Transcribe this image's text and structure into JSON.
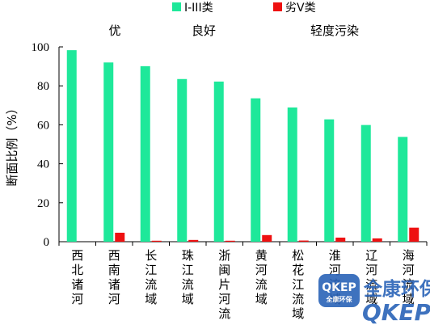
{
  "chart_data": {
    "type": "bar",
    "categories": [
      "西北诸河",
      "西南诸河",
      "长江流域",
      "珠江流域",
      "浙闽片河流",
      "黄河流域",
      "松花江流域",
      "淮河流域",
      "辽河流域",
      "海河流域"
    ],
    "series": [
      {
        "name": "I-III类",
        "color": "#1ee89a",
        "values": [
          98.3,
          92.0,
          90.1,
          83.5,
          82.2,
          73.6,
          68.9,
          62.8,
          59.9,
          53.8
        ]
      },
      {
        "name": "劣V类",
        "color": "#ee1111",
        "values": [
          0,
          4.6,
          0.5,
          0.9,
          0.5,
          3.4,
          0.6,
          2.1,
          1.7,
          7.2
        ]
      }
    ],
    "ylabel": "断面比例（%）",
    "ylim": [
      0,
      100
    ],
    "yticks": [
      0,
      20,
      40,
      60,
      80,
      100
    ],
    "legend_position": "top",
    "group_labels": [
      "优",
      "良好",
      "轻度污染"
    ],
    "grid": false
  },
  "watermark": {
    "badge_top": "QKEP",
    "badge_bottom": "全康环保",
    "brand_cn": "全康环保",
    "brand_en": "QKEP",
    "color": "#2a63b8"
  }
}
